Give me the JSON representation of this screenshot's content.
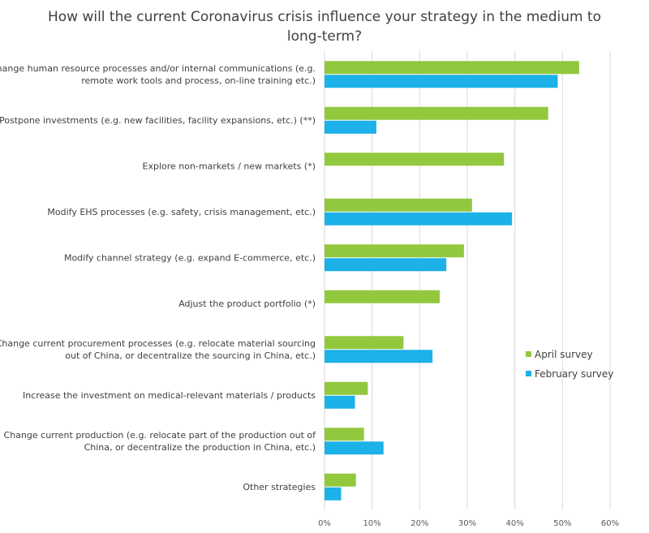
{
  "chart_data": {
    "type": "bar",
    "orientation": "horizontal",
    "title": [
      "How will the current Coronavirus crisis influence your strategy in the medium to",
      "long-term?"
    ],
    "categories": [
      [
        "Change human resource processes and/or internal communications (e.g.",
        "remote work tools and process, on-line training etc.)"
      ],
      [
        "Postpone investments (e.g. new facilities, facility expansions, etc.) (**)"
      ],
      [
        "Explore non-markets / new markets (*)"
      ],
      [
        "Modify EHS processes (e.g. safety, crisis management, etc.)"
      ],
      [
        "Modify channel strategy (e.g. expand E-commerce, etc.)"
      ],
      [
        "Adjust the product portfolio (*)"
      ],
      [
        "Change current procurement processes (e.g. relocate material sourcing",
        "out of China, or decentralize the sourcing in China, etc.)"
      ],
      [
        "Increase the investment on medical-relevant materials / products"
      ],
      [
        "Change current production (e.g. relocate part of the production out of",
        "China, or decentralize the production in China, etc.)"
      ],
      [
        "Other strategies"
      ]
    ],
    "series": [
      {
        "name": "April survey",
        "color": "#92c83e",
        "values": [
          53.5,
          47,
          37.7,
          31,
          29.3,
          24.2,
          16.6,
          9.1,
          8.3,
          6.6
        ]
      },
      {
        "name": "February survey",
        "color": "#1cb1e8",
        "values": [
          49,
          10.9,
          null,
          39.4,
          25.6,
          null,
          22.7,
          6.4,
          12.4,
          3.5
        ]
      }
    ],
    "xlim": [
      0,
      60
    ],
    "xticks": [
      0,
      10,
      20,
      30,
      40,
      50,
      60
    ],
    "xtick_labels": [
      "0%",
      "10%",
      "20%",
      "30%",
      "40%",
      "50%",
      "60%"
    ],
    "grid": "vertical",
    "legend_position": "right"
  }
}
